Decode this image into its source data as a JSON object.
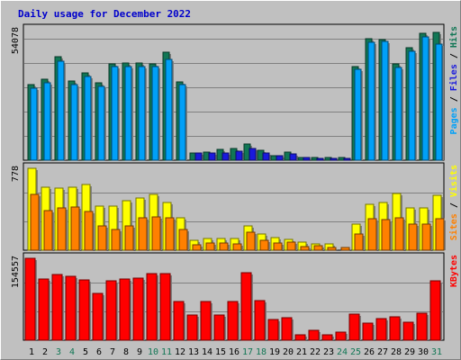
{
  "chart_data": {
    "type": "bar",
    "title": "Daily usage for December 2022",
    "days": [
      "1",
      "2",
      "3",
      "4",
      "5",
      "6",
      "7",
      "8",
      "9",
      "10",
      "11",
      "12",
      "13",
      "14",
      "15",
      "16",
      "17",
      "18",
      "19",
      "20",
      "21",
      "22",
      "23",
      "24",
      "25",
      "26",
      "27",
      "28",
      "29",
      "30",
      "31"
    ],
    "weekend_days": [
      "3",
      "4",
      "10",
      "11",
      "17",
      "18",
      "24",
      "25",
      "31"
    ],
    "colors": {
      "hits": "#117755",
      "files": "#00a0f8",
      "pages": "#1a1add",
      "visits": "#ffff00",
      "sites": "#ff8000",
      "kbytes": "#ff0000",
      "weekday_label": "#000000",
      "weekend_label": "#117755"
    },
    "panels": [
      {
        "id": "top",
        "max_label": "54078",
        "ymax": 54078,
        "right_label_parts": [
          {
            "text": "Pages",
            "color": "#00a0f8"
          },
          {
            "text": " / ",
            "color": "#000000"
          },
          {
            "text": "Files",
            "color": "#1a1add"
          },
          {
            "text": " / ",
            "color": "#000000"
          },
          {
            "text": "Hits",
            "color": "#117755"
          }
        ],
        "series": [
          {
            "name": "Hits",
            "color": "#117755",
            "values": [
              31500,
              33700,
              42800,
              32800,
              36000,
              32000,
              40000,
              40100,
              40100,
              40000,
              44600,
              32500,
              3100,
              3500,
              4500,
              5000,
              6800,
              4000,
              2000,
              3200,
              1200,
              1100,
              1300,
              1200,
              38800,
              50500,
              49900,
              40000,
              46600,
              52400,
              52800
            ]
          },
          {
            "name": "Files",
            "color": "#00a0f8",
            "values": [
              30000,
              32000,
              41000,
              31500,
              34500,
              30500,
              38800,
              38800,
              38800,
              38800,
              41800,
              31200,
              0,
              0,
              0,
              0,
              0,
              0,
              0,
              0,
              0,
              0,
              0,
              0,
              37500,
              49000,
              49200,
              38600,
              45000,
              51000,
              48000
            ]
          },
          {
            "name": "Pages",
            "color": "#1a1add",
            "values": [
              0,
              0,
              0,
              0,
              0,
              0,
              0,
              0,
              0,
              0,
              0,
              0,
              2800,
              3000,
              3000,
              3700,
              4700,
              3100,
              1700,
              2500,
              1100,
              900,
              900,
              600,
              0,
              0,
              0,
              0,
              0,
              0,
              0
            ]
          }
        ]
      },
      {
        "id": "mid",
        "max_label": "778",
        "ymax": 778,
        "right_label_parts": [
          {
            "text": "Sites",
            "color": "#ff8000"
          },
          {
            "text": " / ",
            "color": "#000000"
          },
          {
            "text": "Visits",
            "color": "#ffff00"
          }
        ],
        "series": [
          {
            "name": "Visits",
            "color": "#ffff00",
            "values": [
              778,
              600,
              590,
              600,
              620,
              420,
              420,
              470,
              500,
              530,
              450,
              310,
              90,
              110,
              110,
              110,
              230,
              150,
              120,
              100,
              80,
              60,
              60,
              0,
              250,
              440,
              450,
              540,
              400,
              400,
              520
            ]
          },
          {
            "name": "Sites",
            "color": "#ff8000",
            "values": [
              530,
              380,
              400,
              410,
              370,
              230,
              200,
              230,
              310,
              320,
              310,
              200,
              50,
              70,
              70,
              60,
              170,
              90,
              70,
              80,
              30,
              40,
              25,
              25,
              150,
              300,
              290,
              310,
              250,
              250,
              300
            ]
          }
        ]
      },
      {
        "id": "bottom",
        "max_label": "154557",
        "ymax": 154557,
        "right_label_parts": [
          {
            "text": "KBytes",
            "color": "#ff0000"
          }
        ],
        "series": [
          {
            "name": "KBytes",
            "color": "#ff0000",
            "values": [
              154557,
              114800,
              124700,
              121300,
              113000,
              88000,
              112800,
              116000,
              117000,
              125000,
              125500,
              73500,
              48000,
              73500,
              47500,
              73500,
              127800,
              74000,
              39000,
              42000,
              10500,
              19500,
              10000,
              16000,
              49500,
              33000,
              41000,
              44500,
              34500,
              51500,
              112000
            ]
          }
        ]
      }
    ]
  }
}
